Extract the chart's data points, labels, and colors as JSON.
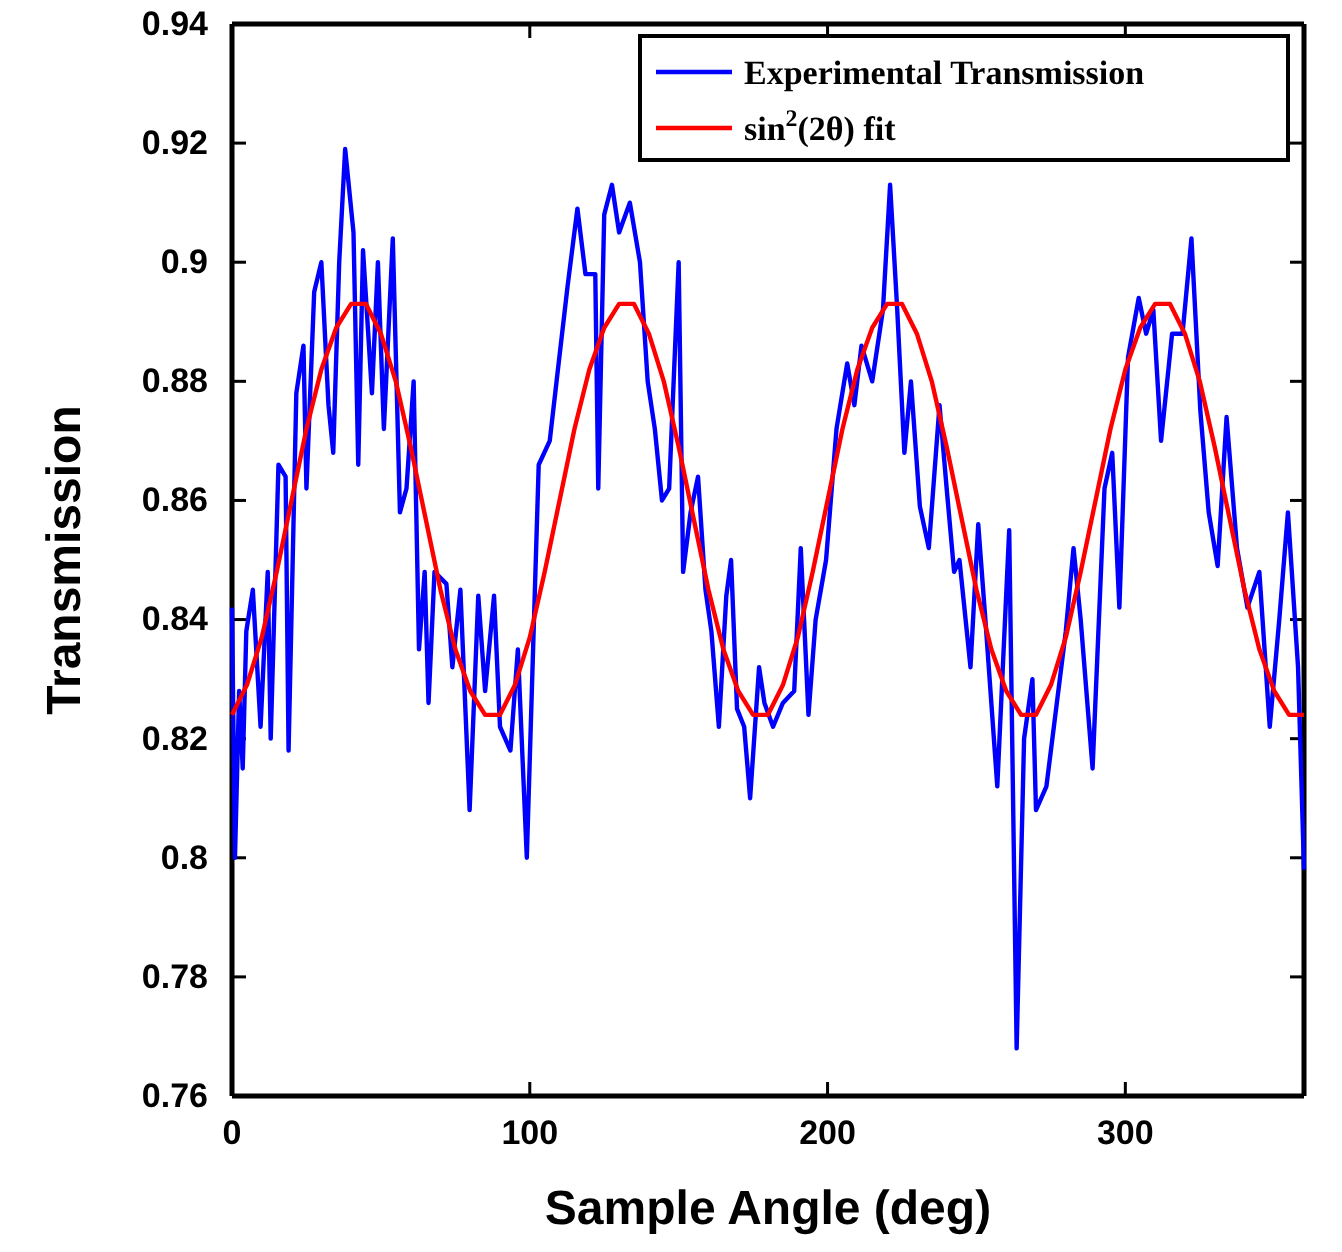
{
  "chart_data": {
    "type": "line",
    "xlabel": "Sample Angle (deg)",
    "ylabel": "Transmission",
    "xlim": [
      0,
      360
    ],
    "xticks": [
      0,
      100,
      200,
      300
    ],
    "ylim": [
      0.76,
      0.94
    ],
    "yticks": [
      0.76,
      0.78,
      0.8,
      0.82,
      0.84,
      0.86,
      0.88,
      0.9,
      0.92,
      0.94
    ],
    "grid": false,
    "legend": "top right",
    "series": [
      {
        "name": "Experimental Transmission",
        "color": "#0000ff",
        "x": [
          0,
          1,
          2.4,
          3.6,
          4.8,
          7,
          9.6,
          12,
          13,
          15.6,
          18,
          19,
          21.6,
          24,
          25,
          27.6,
          30,
          32.4,
          34,
          36,
          38,
          40.8,
          42.4,
          44,
          47,
          49,
          51,
          54,
          56.4,
          58.6,
          61,
          62.8,
          64.7,
          66,
          68,
          72,
          74,
          76.7,
          79.8,
          82.7,
          85,
          88,
          90,
          93.5,
          96,
          99,
          101.9,
          103,
          106.7,
          109,
          112.7,
          116,
          118.7,
          122,
          123,
          125,
          127.6,
          130,
          133.6,
          137,
          139.6,
          142,
          144.4,
          146.8,
          150,
          151.5,
          154,
          156.5,
          159,
          161,
          163.5,
          166,
          167.6,
          169.6,
          172,
          174,
          177,
          178.8,
          181.7,
          185,
          188.8,
          191,
          193.6,
          196,
          199.5,
          203,
          206.6,
          209,
          211.4,
          215,
          218.6,
          221,
          223.4,
          225.8,
          228,
          231,
          234,
          237.6,
          240,
          242.5,
          244.3,
          248,
          250.6,
          253,
          257,
          261,
          263.5,
          266,
          268.8,
          270,
          273.5,
          276,
          280,
          282.6,
          285,
          289,
          293,
          295.6,
          298,
          300.9,
          304.5,
          307,
          309.4,
          312,
          315.7,
          319.2,
          322.2,
          325.2,
          328,
          331,
          334,
          337.5,
          341,
          345,
          348.5,
          351.7,
          354.6,
          358,
          360
        ],
        "values": [
          0.842,
          0.8,
          0.828,
          0.815,
          0.838,
          0.845,
          0.822,
          0.848,
          0.82,
          0.866,
          0.864,
          0.818,
          0.878,
          0.886,
          0.862,
          0.895,
          0.9,
          0.876,
          0.868,
          0.9,
          0.919,
          0.905,
          0.866,
          0.902,
          0.878,
          0.9,
          0.872,
          0.904,
          0.858,
          0.862,
          0.88,
          0.835,
          0.848,
          0.826,
          0.848,
          0.846,
          0.832,
          0.845,
          0.808,
          0.844,
          0.828,
          0.844,
          0.822,
          0.818,
          0.835,
          0.8,
          0.848,
          0.866,
          0.87,
          0.88,
          0.896,
          0.909,
          0.898,
          0.898,
          0.862,
          0.908,
          0.913,
          0.905,
          0.91,
          0.9,
          0.88,
          0.872,
          0.86,
          0.862,
          0.9,
          0.848,
          0.858,
          0.864,
          0.845,
          0.838,
          0.822,
          0.844,
          0.85,
          0.825,
          0.822,
          0.81,
          0.832,
          0.826,
          0.822,
          0.826,
          0.828,
          0.852,
          0.824,
          0.84,
          0.85,
          0.872,
          0.883,
          0.876,
          0.886,
          0.88,
          0.892,
          0.913,
          0.892,
          0.868,
          0.88,
          0.859,
          0.852,
          0.876,
          0.862,
          0.848,
          0.85,
          0.832,
          0.856,
          0.84,
          0.812,
          0.855,
          0.768,
          0.82,
          0.83,
          0.808,
          0.812,
          0.822,
          0.838,
          0.852,
          0.84,
          0.815,
          0.862,
          0.868,
          0.842,
          0.884,
          0.894,
          0.888,
          0.892,
          0.87,
          0.888,
          0.888,
          0.904,
          0.875,
          0.858,
          0.849,
          0.874,
          0.852,
          0.842,
          0.848,
          0.822,
          0.84,
          0.858,
          0.832,
          0.798
        ]
      },
      {
        "name": "sin$^{2}$(2θ) fit",
        "color": "#ff0000",
        "x": [
          0,
          5,
          10,
          15,
          20,
          25,
          30,
          35,
          40,
          45,
          50,
          55,
          60,
          65,
          70,
          75,
          80,
          85,
          90,
          95,
          100,
          105,
          110,
          115,
          120,
          125,
          130,
          135,
          140,
          145,
          150,
          155,
          160,
          165,
          170,
          175,
          180,
          185,
          190,
          195,
          200,
          205,
          210,
          215,
          220,
          225,
          230,
          235,
          240,
          245,
          250,
          255,
          260,
          265,
          270,
          275,
          280,
          285,
          290,
          295,
          300,
          305,
          310,
          315,
          320,
          325,
          330,
          335,
          340,
          345,
          350,
          355,
          360
        ],
        "values": [
          0.824,
          0.829,
          0.837,
          0.848,
          0.86,
          0.872,
          0.882,
          0.889,
          0.893,
          0.893,
          0.888,
          0.88,
          0.869,
          0.857,
          0.845,
          0.835,
          0.828,
          0.824,
          0.824,
          0.829,
          0.837,
          0.848,
          0.86,
          0.872,
          0.882,
          0.889,
          0.893,
          0.893,
          0.888,
          0.88,
          0.869,
          0.857,
          0.845,
          0.835,
          0.828,
          0.824,
          0.824,
          0.829,
          0.837,
          0.848,
          0.86,
          0.872,
          0.882,
          0.889,
          0.893,
          0.893,
          0.888,
          0.88,
          0.869,
          0.857,
          0.845,
          0.835,
          0.828,
          0.824,
          0.824,
          0.829,
          0.837,
          0.848,
          0.86,
          0.872,
          0.882,
          0.889,
          0.893,
          0.893,
          0.888,
          0.88,
          0.869,
          0.857,
          0.845,
          0.835,
          0.828,
          0.824,
          0.824
        ]
      }
    ]
  }
}
